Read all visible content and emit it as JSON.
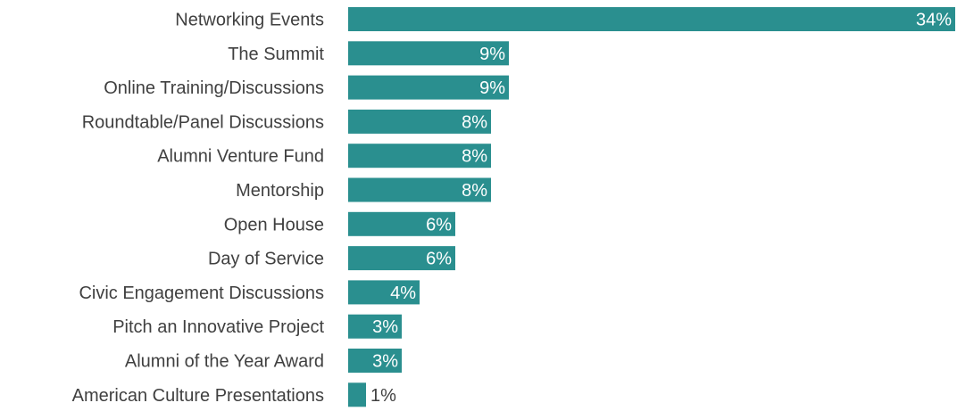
{
  "chart_data": {
    "type": "bar",
    "orientation": "horizontal",
    "categories": [
      "Networking Events",
      "The Summit",
      "Online Training/Discussions",
      "Roundtable/Panel Discussions",
      "Alumni Venture Fund",
      "Mentorship",
      "Open House",
      "Day of Service",
      "Civic Engagement Discussions",
      "Pitch an Innovative Project",
      "Alumni of the Year Award",
      "American Culture Presentations"
    ],
    "values": [
      34,
      9,
      9,
      8,
      8,
      8,
      6,
      6,
      4,
      3,
      3,
      1
    ],
    "value_labels": [
      "34%",
      "9%",
      "9%",
      "8%",
      "8%",
      "8%",
      "6%",
      "6%",
      "4%",
      "3%",
      "3%",
      "1%"
    ],
    "unit": "%",
    "xlim": [
      0,
      34
    ],
    "grid": false,
    "bar_color": "#2a8f8f",
    "label_inside_color": "#ffffff",
    "label_outside_color": "#404040"
  }
}
